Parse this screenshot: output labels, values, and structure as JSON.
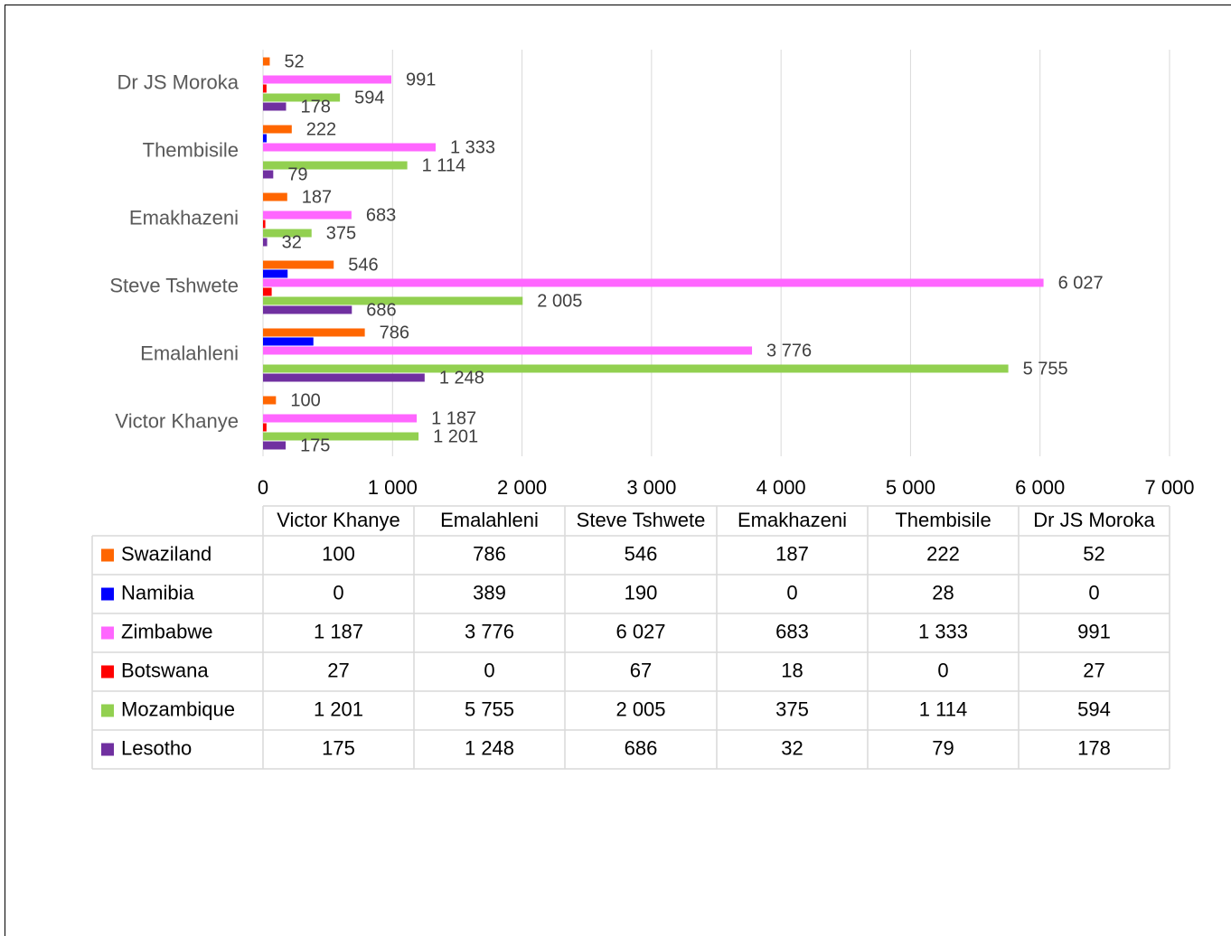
{
  "chart_data": {
    "type": "bar",
    "orientation": "horizontal",
    "categories": [
      "Victor Khanye",
      "Emalahleni",
      "Steve Tshwete",
      "Emakhazeni",
      "Thembisile",
      "Dr JS Moroka"
    ],
    "series": [
      {
        "name": "Swaziland",
        "color": "#ff6600",
        "data_labels": true,
        "values": [
          100,
          786,
          546,
          187,
          222,
          52
        ],
        "value_labels": [
          "100",
          "786",
          "546",
          "187",
          "222",
          "52"
        ]
      },
      {
        "name": "Namibia",
        "color": "#0000ff",
        "data_labels": false,
        "values": [
          0,
          389,
          190,
          0,
          28,
          0
        ],
        "value_labels": [
          "0",
          "389",
          "190",
          "0",
          "28",
          "0"
        ]
      },
      {
        "name": "Zimbabwe",
        "color": "#ff66ff",
        "data_labels": true,
        "values": [
          1187,
          3776,
          6027,
          683,
          1333,
          991
        ],
        "value_labels": [
          "1 187",
          "3 776",
          "6 027",
          "683",
          "1 333",
          "991"
        ]
      },
      {
        "name": "Botswana",
        "color": "#ff0000",
        "data_labels": false,
        "values": [
          27,
          0,
          67,
          18,
          0,
          27
        ],
        "value_labels": [
          "27",
          "0",
          "67",
          "18",
          "0",
          "27"
        ]
      },
      {
        "name": "Mozambique",
        "color": "#92d050",
        "data_labels": true,
        "values": [
          1201,
          5755,
          2005,
          375,
          1114,
          594
        ],
        "value_labels": [
          "1 201",
          "5 755",
          "2 005",
          "375",
          "1 114",
          "594"
        ]
      },
      {
        "name": "Lesotho",
        "color": "#7030a0",
        "data_labels": true,
        "values": [
          175,
          1248,
          686,
          32,
          79,
          178
        ],
        "value_labels": [
          "175",
          "1 248",
          "686",
          "32",
          "79",
          "178"
        ]
      }
    ],
    "xlim": [
      0,
      7000
    ],
    "xticks": [
      0,
      {
        "value": 1000,
        "label": "1 000"
      },
      {
        "value": 2000,
        "label": "2 000"
      },
      {
        "value": 3000,
        "label": "3 000"
      },
      {
        "value": 4000,
        "label": "4 000"
      },
      {
        "value": 5000,
        "label": "5 000"
      },
      {
        "value": 6000,
        "label": "6 000"
      },
      {
        "value": 7000,
        "label": "7 000"
      }
    ],
    "grid": true,
    "data_table": true
  }
}
